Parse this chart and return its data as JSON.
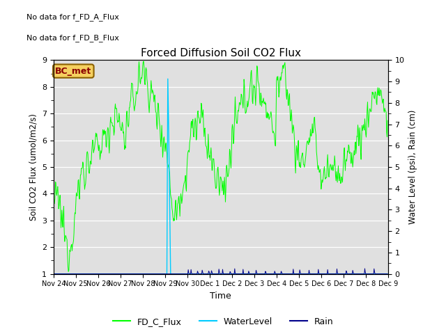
{
  "title": "Forced Diffusion Soil CO2 Flux",
  "xlabel": "Time",
  "ylabel_left": "Soil CO2 Flux (umol/m2/s)",
  "ylabel_right": "Water Level (psi), Rain (cm)",
  "ylim_left": [
    1.0,
    9.0
  ],
  "ylim_right": [
    0.0,
    10.0
  ],
  "bg_color": "#e0e0e0",
  "no_data_text": [
    "No data for f_FD_A_Flux",
    "No data for f_FD_B_Flux"
  ],
  "bc_met_label": "BC_met",
  "legend_entries": [
    "FD_C_Flux",
    "WaterLevel",
    "Rain"
  ],
  "legend_colors": [
    "#00ff00",
    "#00ccff",
    "#00008b"
  ],
  "xtick_labels": [
    "Nov 24",
    "Nov 25",
    "Nov 26",
    "Nov 27",
    "Nov 28",
    "Nov 29",
    "Nov 30",
    "Dec 1",
    "Dec 2",
    "Dec 3",
    "Dec 4",
    "Dec 5",
    "Dec 6",
    "Dec 7",
    "Dec 8",
    "Dec 9"
  ],
  "yticks_left": [
    1.0,
    2.0,
    3.0,
    4.0,
    5.0,
    6.0,
    7.0,
    8.0,
    9.0
  ],
  "yticks_right": [
    0.0,
    1.0,
    2.0,
    3.0,
    4.0,
    5.0,
    6.0,
    7.0,
    8.0,
    9.0,
    10.0
  ]
}
